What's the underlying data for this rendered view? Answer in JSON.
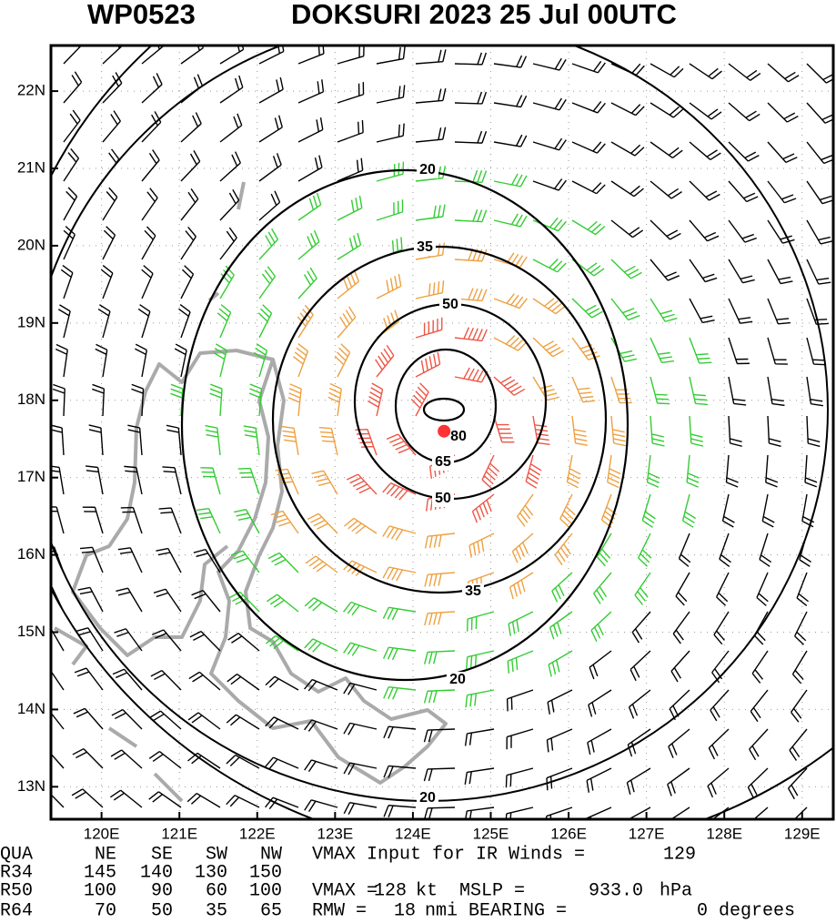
{
  "header": {
    "id": "WP0523",
    "title": "DOKSURI 2023 25 Jul 00UTC"
  },
  "chart_data": {
    "type": "contour",
    "xlim": [
      119.35,
      129.4
    ],
    "ylim": [
      12.58,
      22.59
    ],
    "xticks": [
      {
        "value": 120,
        "label": "120E"
      },
      {
        "value": 121,
        "label": "121E"
      },
      {
        "value": 122,
        "label": "122E"
      },
      {
        "value": 123,
        "label": "123E"
      },
      {
        "value": 124,
        "label": "124E"
      },
      {
        "value": 125,
        "label": "125E"
      },
      {
        "value": 126,
        "label": "126E"
      },
      {
        "value": 127,
        "label": "127E"
      },
      {
        "value": 128,
        "label": "128E"
      },
      {
        "value": 129,
        "label": "129E"
      }
    ],
    "yticks": [
      {
        "value": 13,
        "label": "13N"
      },
      {
        "value": 14,
        "label": "14N"
      },
      {
        "value": 15,
        "label": "15N"
      },
      {
        "value": 16,
        "label": "16N"
      },
      {
        "value": 17,
        "label": "17N"
      },
      {
        "value": 18,
        "label": "18N"
      },
      {
        "value": 19,
        "label": "19N"
      },
      {
        "value": 20,
        "label": "20N"
      },
      {
        "value": 21,
        "label": "21N"
      },
      {
        "value": 22,
        "label": "22N"
      }
    ],
    "grid": true,
    "contours": [
      20,
      35,
      50,
      65,
      80
    ],
    "center": [
      124.4,
      17.6
    ],
    "center_color": "#ff3333"
  },
  "table": {
    "header": [
      "QUA",
      "NE",
      "SE",
      "SW",
      "NW"
    ],
    "rows": [
      [
        "R34",
        145,
        140,
        130,
        150
      ],
      [
        "R50",
        100,
        90,
        60,
        100
      ],
      [
        "R64",
        70,
        50,
        35,
        65
      ]
    ]
  },
  "info": {
    "ir_label": "VMAX Input for IR Winds =",
    "ir_vmax": 129,
    "vmax_label": "VMAX =",
    "vmax": 128,
    "vmax_unit": "kt",
    "mslp_label": "MSLP =",
    "mslp": "933.0",
    "mslp_unit": "hPa",
    "rmw_label": "RMW =",
    "rmw": 18,
    "rmw_unit": "nmi",
    "bearing_label": "BEARING =",
    "bearing": 0,
    "bearing_unit": "degrees"
  }
}
